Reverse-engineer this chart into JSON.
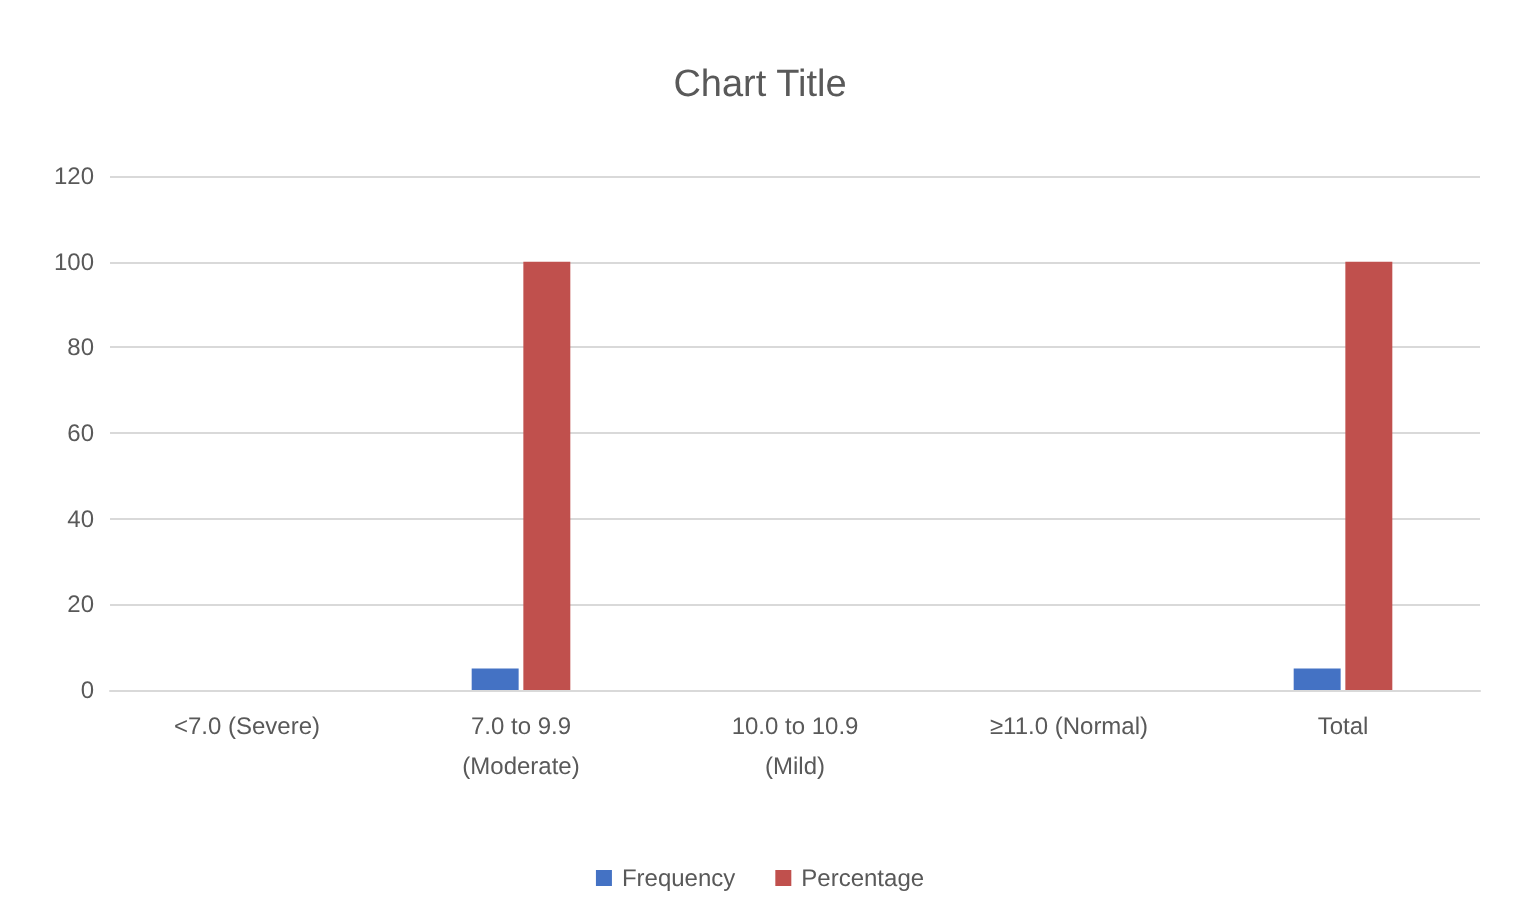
{
  "chart_data": {
    "type": "bar",
    "title": "Chart Title",
    "categories": [
      "<7.0 (Severe)",
      "7.0 to 9.9\n(Moderate)",
      "10.0 to 10.9\n(Mild)",
      "≥11.0 (Normal)",
      "Total"
    ],
    "series": [
      {
        "name": "Frequency",
        "color": "#4472c4",
        "values": [
          0,
          5,
          0,
          0,
          5
        ]
      },
      {
        "name": "Percentage",
        "color": "#c0504d",
        "values": [
          0,
          100,
          0,
          0,
          100
        ]
      }
    ],
    "ylim": [
      0,
      120
    ],
    "yticks": [
      0,
      20,
      40,
      60,
      80,
      100,
      120
    ],
    "grid": "y",
    "legend": "bottom"
  }
}
